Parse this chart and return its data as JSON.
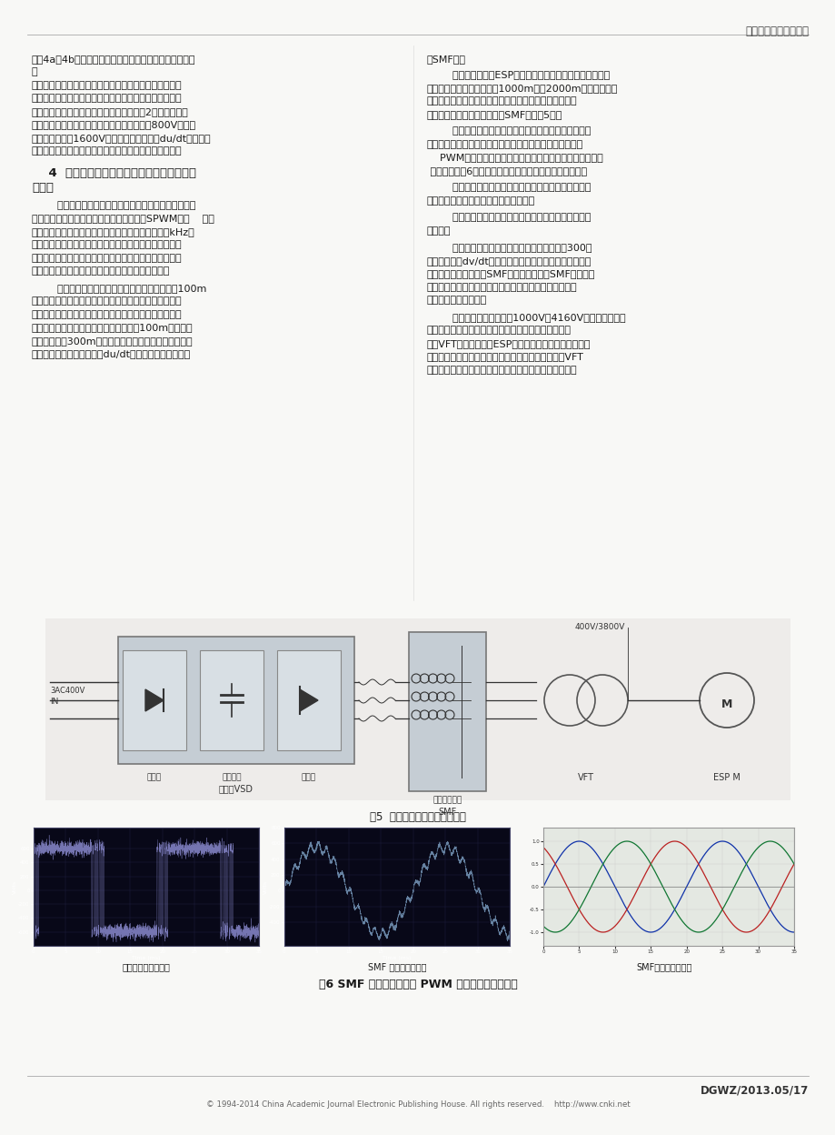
{
  "page_width": 9.2,
  "page_height": 12.48,
  "dpi": 100,
  "background_color": "#f8f8f6",
  "header_text": "电工文摘／设计与选型",
  "header_color": "#444444",
  "footer_text1": "DGWZ/2013.05/17",
  "footer_text2": "© 1994-2014 China Academic Journal Electronic Publishing House. All rights reserved.    http://www.cnki.net",
  "text_color": "#1a1a1a",
  "text_fontsize": 7.8,
  "fig5_caption": "图5  电潜泵变频控制接线拓扑图",
  "fig6_caption": "图6 SMF 正弦波滤波器将 PWM 电压波形变成正弦波",
  "fig6_sub1": "变频器输出电压波形",
  "fig6_sub2": "SMF 的输出电压波形",
  "fig6_sub3": "SMF的电流输出波形",
  "left_lines": [
    "见图4a，4b变频器输出波形和电机端电压波形图。在电机",
    "侧",
    "的脉冲电压峰値取决于变频器－电缆－电机的动态模型，",
    "具体来说与传输线路的特征，电缆长度，电机的特征阻抗",
    "以及脉冲的频率相关。这个电压可能会超过2倍的直流母线",
    "电压。变频器的直流母线在发电运行时将高达800V，则电",
    "机侧会承受超过1600V的电压。高电压和高du/dt将显著破",
    "坏电机的络缘。变频器谐波对供电系统（网侧）、负载及"
  ],
  "section_title_line1": "    4  正弦滤波器在电潜泵变频器上的作用及工",
  "section_title_line2": "作原理",
  "left_para2_lines": [
    "        通过上述描述可知，变频器尤其是电压源变频器，其",
    "逆变器输出通常都是正弦波脉宽调制方式（SPWM），    输出",
    "电压除了正弦形基波外，还有数量级可达几十千周（kHz）",
    "的高频谐波成分，给输出也带来一些特殊问题。变频器输",
    "出的这些谐波成分给电机带来的伤害是致命的。如：电机",
    "络缘的降低、电机轴承的损坏、电机电缆的击穿等。"
  ],
  "left_para3_lines": [
    "        变频器应用于地面电机，特别是电机电缆小于100m",
    "的鼠笼式异步普通电机时，这个影响还不算大，为了节约",
    "成本，在变频器的输出端，一般不作处理，直接将变频器",
    "的输出接于电机端。当电机电缆长度大于100m，尤其是",
    "电缆长度超过300m时，变频器输出端必须增加输出滤波",
    "器。一般有：输出电抗器、du/dt滤波器、正弦波滤波器"
  ],
  "right_line0": "（SMF）。",
  "right_para1_lines": [
    "        油田潜油电泵（ESP）使用低压变频器时，由于变频器输",
    "出至电潜泵的电缆长度超过1000m甚至2000m以上，因此为",
    "了保证电机电缆不被击穿，电机络缘不被损坏，在变频器",
    "输出端都增加了正弦波滤波器SMF（见图5）。"
  ],
  "right_para2_lines": [
    "        正弦波滤波器，安装在变频器的输出端，我们称电机",
    "卫士。正弦波滤波器具有两个功能：一个是将变频器输出的",
    "    PWM电压波形转换成正弦波电压，为电潜泵电机提供正弦",
    " 波电压，如图6所示。另一个功能是减小电机的轴承电流。"
  ],
  "right_para3_lines": [
    "        由于电机工作所需要的是正弦波电压和电流，因此理",
    "想的工作方式是为电机提供正弦波电压。"
  ],
  "right_para4_lines": [
    "        正弦波滤波器正是满足这种要求，它为电机提供正弦",
    "波电压。"
  ],
  "right_para5_lines": [
    "        通常，当变频器与电机之间的电缆长度大于300米",
    "时，即使使用dv/dt滤波器也不能完全避免过冲电压，这时",
    "只能使用正弦波滤波器SMF保护电机。使用SMF电机卫士",
    "时，电缆可以长达数千米，而不必担心电机电缆被击穿或",
    "电机被过冲电压损坏。"
  ],
  "right_para6_lines": [
    "        由于电潜泵电机电压为1000V～4160V的中等电压，在",
    "使用低压变频器时，变频器输出端必须通过升压变频变",
    "压器VFT来满足电潜泵ESP电机电压的需要。若不能将变",
    "频器输出的谐波进行抑制，则变频器输出的谐波通过VFT",
    "后，将得到更大的放大（升高），这个谐波电压将会加在"
  ]
}
